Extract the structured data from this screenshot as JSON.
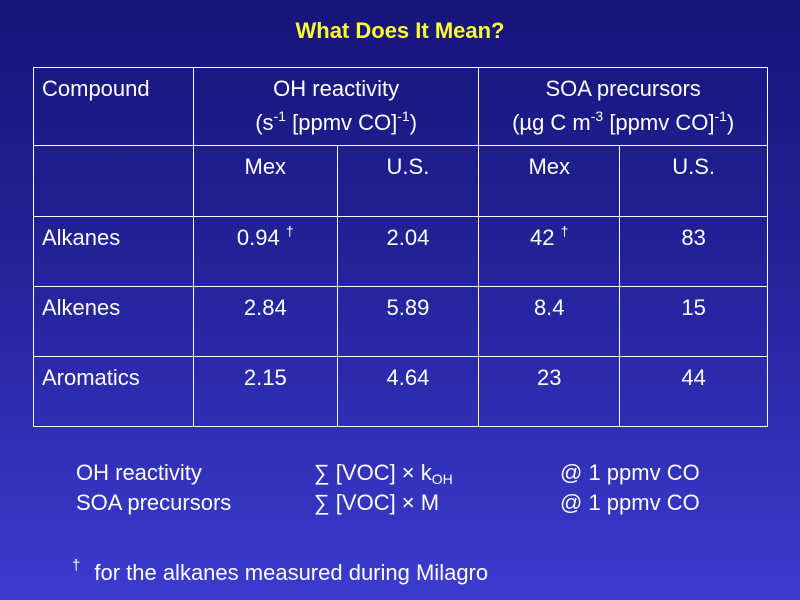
{
  "title": "What Does It Mean?",
  "table": {
    "corner_label": "Compound",
    "groups": [
      {
        "name": "OH reactivity",
        "unit_prefix": "(s",
        "unit_exp1": "-1",
        "unit_middle": " [ppmv CO]",
        "unit_exp2": "-1",
        "unit_suffix": ")"
      },
      {
        "name": "SOA precursors",
        "unit_prefix": "(µg C m",
        "unit_exp1": "-3",
        "unit_middle": " [ppmv CO]",
        "unit_exp2": "-1",
        "unit_suffix": ")"
      }
    ],
    "subheaders": [
      "Mex",
      "U.S.",
      "Mex",
      "U.S."
    ],
    "rows": [
      {
        "compound": "Alkanes",
        "values": [
          "0.94",
          "2.04",
          "42",
          "83"
        ],
        "marks": [
          "†",
          "",
          "†",
          ""
        ]
      },
      {
        "compound": "Alkenes",
        "values": [
          "2.84",
          "5.89",
          "8.4",
          "15"
        ],
        "marks": [
          "",
          "",
          "",
          ""
        ]
      },
      {
        "compound": "Aromatics",
        "values": [
          "2.15",
          "4.64",
          "23",
          "44"
        ],
        "marks": [
          "",
          "",
          "",
          ""
        ]
      }
    ]
  },
  "definitions": [
    {
      "label": "OH reactivity",
      "sum_symbol": "∑",
      "formula": " [VOC] × k",
      "subscript": "OH",
      "condition": "@ 1 ppmv CO"
    },
    {
      "label": "SOA precursors",
      "sum_symbol": "∑",
      "formula": " [VOC] × M",
      "subscript": "",
      "condition": "@ 1 ppmv CO"
    }
  ],
  "footnote": {
    "mark": "†",
    "text": "for the alkanes measured during Milagro"
  },
  "colors": {
    "title": "#ffff33",
    "text": "#ffffff",
    "background_top": "#15157a",
    "background_bottom": "#3b3bd0"
  }
}
